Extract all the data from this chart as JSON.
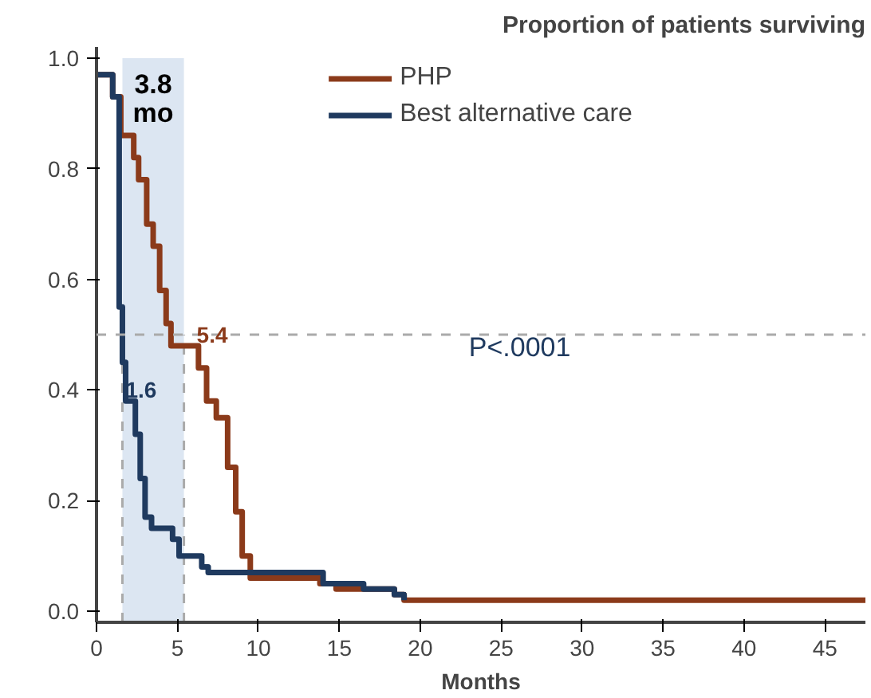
{
  "chart_data": {
    "type": "step",
    "title": "Proportion of patients surviving",
    "xlabel": "Months",
    "xlim": [
      0,
      47.5
    ],
    "ylim": [
      -0.02,
      1.02
    ],
    "xticks": [
      0,
      5,
      10,
      15,
      20,
      25,
      30,
      35,
      40,
      45
    ],
    "yticks": [
      {
        "value": 0,
        "label": "0.0"
      },
      {
        "value": 0.2,
        "label": "0.2"
      },
      {
        "value": 0.4,
        "label": "0.4"
      },
      {
        "value": 0.6,
        "label": "0.6"
      },
      {
        "value": 0.8,
        "label": "0.8"
      },
      {
        "value": 1,
        "label": "1.0"
      }
    ],
    "grid": false,
    "legend": "top",
    "line_style": "solid",
    "marker": "none",
    "series": [
      {
        "name": "PHP",
        "color": "#8b3a1a",
        "x": [
          0,
          1.0,
          1.5,
          2.3,
          2.6,
          3.1,
          3.5,
          3.9,
          4.3,
          4.6,
          6.3,
          6.8,
          7.4,
          8.1,
          8.6,
          9.0,
          9.5,
          13.8,
          14.8,
          18.4,
          19.0,
          47.5
        ],
        "values": [
          0.97,
          0.93,
          0.86,
          0.82,
          0.78,
          0.7,
          0.66,
          0.58,
          0.52,
          0.48,
          0.44,
          0.38,
          0.35,
          0.26,
          0.18,
          0.1,
          0.06,
          0.05,
          0.04,
          0.03,
          0.02,
          0.02
        ]
      },
      {
        "name": "Best alternative care",
        "color": "#1f3a5f",
        "x": [
          0,
          1.0,
          1.4,
          1.6,
          1.8,
          2.4,
          2.7,
          3.0,
          3.4,
          4.7,
          5.1,
          6.5,
          6.9,
          7.4,
          14.0,
          16.5,
          18.4,
          19.0
        ],
        "values": [
          0.97,
          0.93,
          0.55,
          0.45,
          0.38,
          0.32,
          0.24,
          0.17,
          0.15,
          0.13,
          0.1,
          0.08,
          0.07,
          0.07,
          0.05,
          0.04,
          0.03,
          0.02
        ]
      }
    ],
    "ref_lines": [
      {
        "axis": "y",
        "value": 0.5,
        "color": "#aaaaaa",
        "line_style": "dashed"
      },
      {
        "axis": "x",
        "value": 1.6,
        "color": "#aaaaaa",
        "line_style": "dashed"
      },
      {
        "axis": "x",
        "value": 5.4,
        "color": "#aaaaaa",
        "line_style": "dashed"
      }
    ],
    "bands": [
      {
        "axis": "x",
        "from": 1.6,
        "to": 5.4,
        "color": "#dce6f2",
        "label": "3.8 mo"
      }
    ],
    "annotations": [
      {
        "text": "5.4",
        "x": 5.4,
        "y": 0.5
      },
      {
        "text": "1.6",
        "x": 1.6,
        "y": 0.45
      },
      "P<.0001"
    ]
  }
}
